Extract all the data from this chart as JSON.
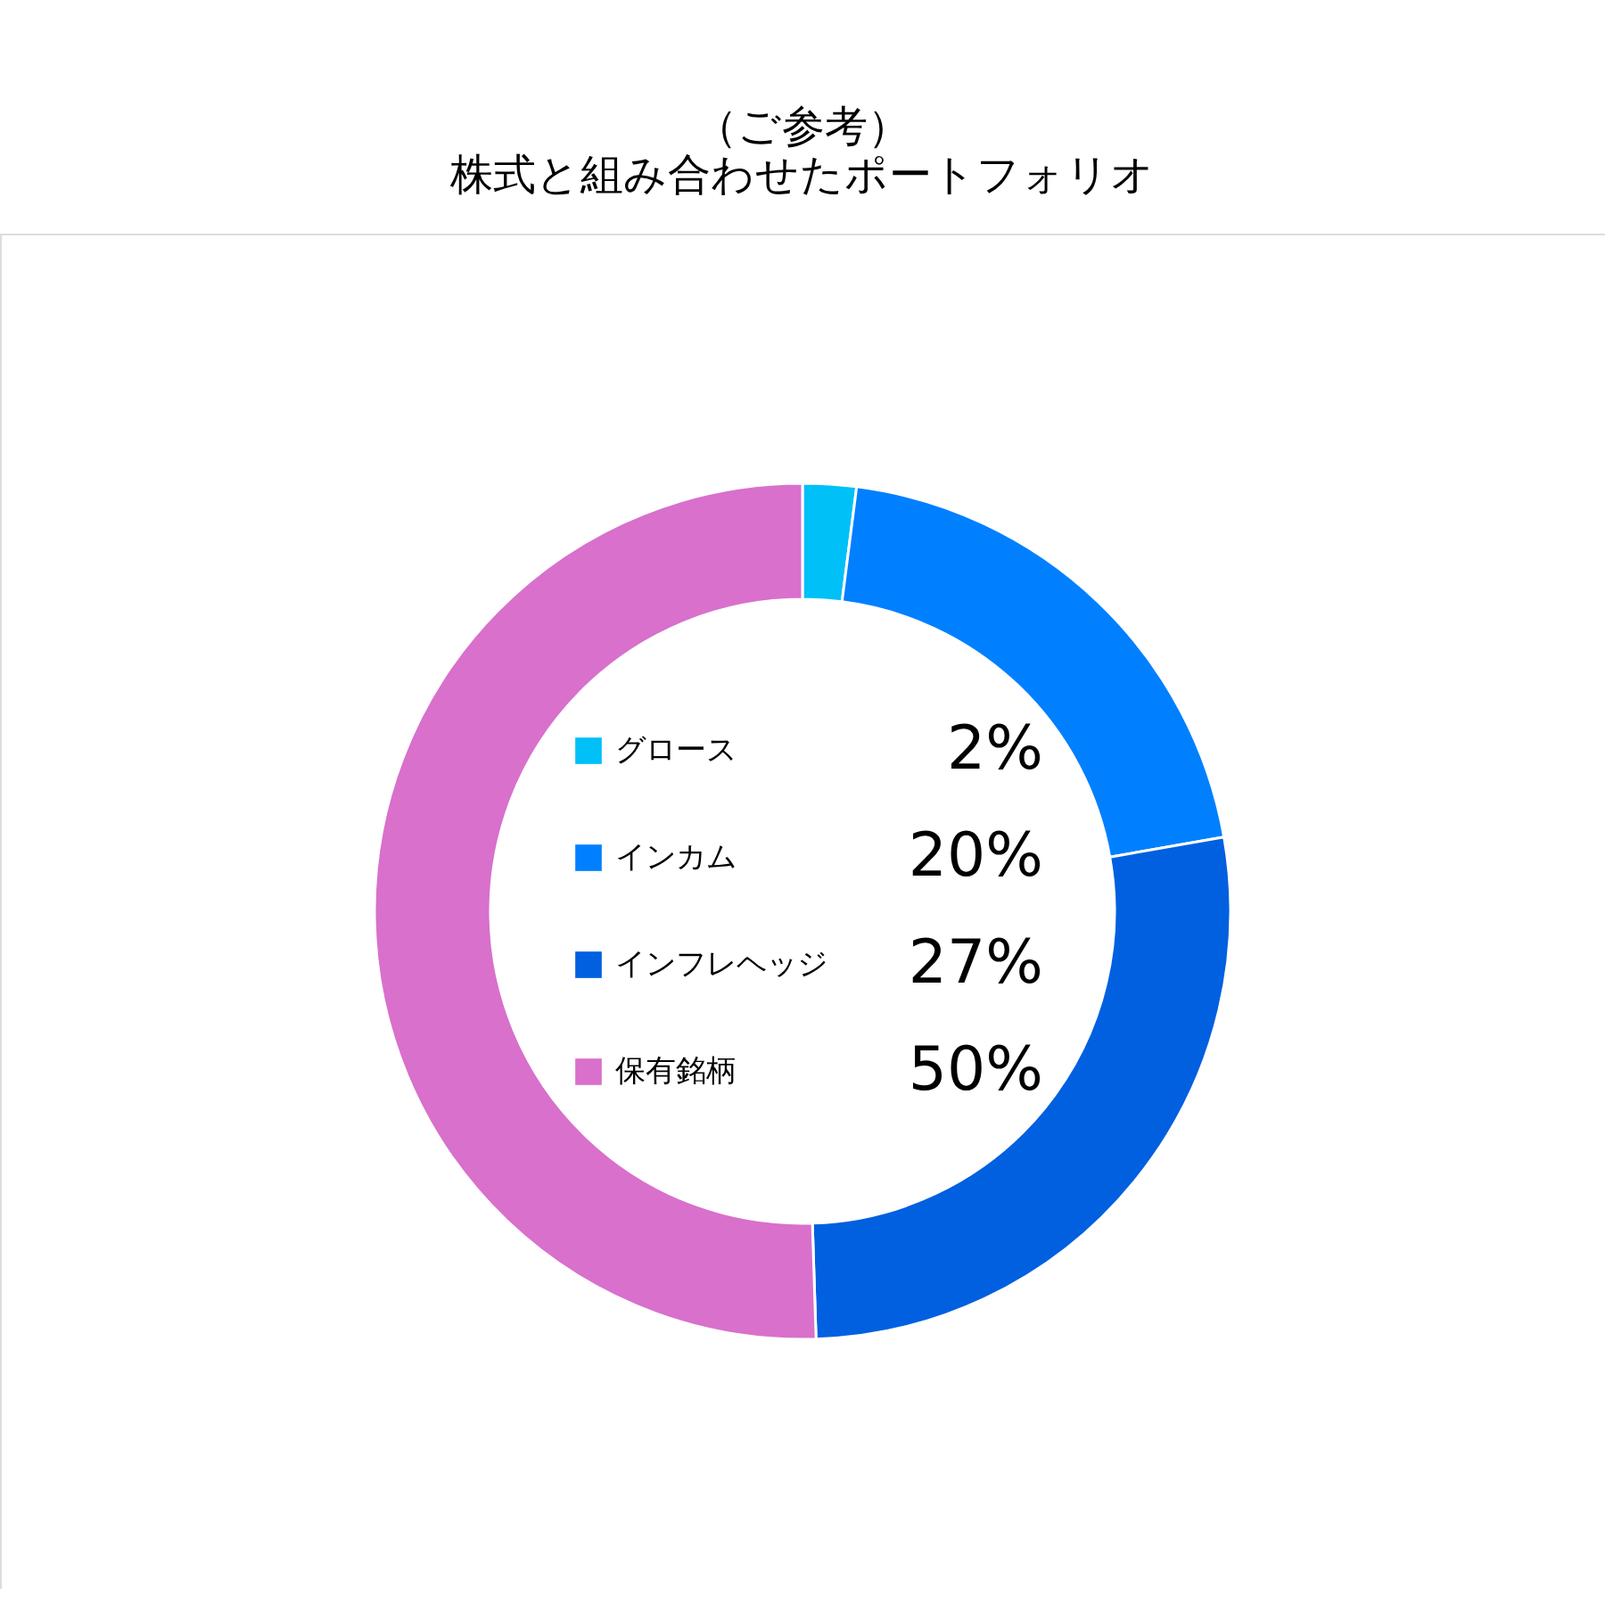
{
  "chart_data": {
    "type": "donut",
    "title": "（ご参考）",
    "subtitle": "株式と組み合わせたポートフォリオ",
    "categories": [
      "グロース",
      "インカム",
      "インフレヘッジ",
      "保有銘柄"
    ],
    "values": [
      2,
      20,
      27,
      50
    ],
    "colors": [
      "#00c0f8",
      "#0080ff",
      "#0060e0",
      "#d870cc"
    ],
    "value_labels": [
      "2%",
      "20%",
      "27%",
      "50%"
    ],
    "legend": "center"
  }
}
